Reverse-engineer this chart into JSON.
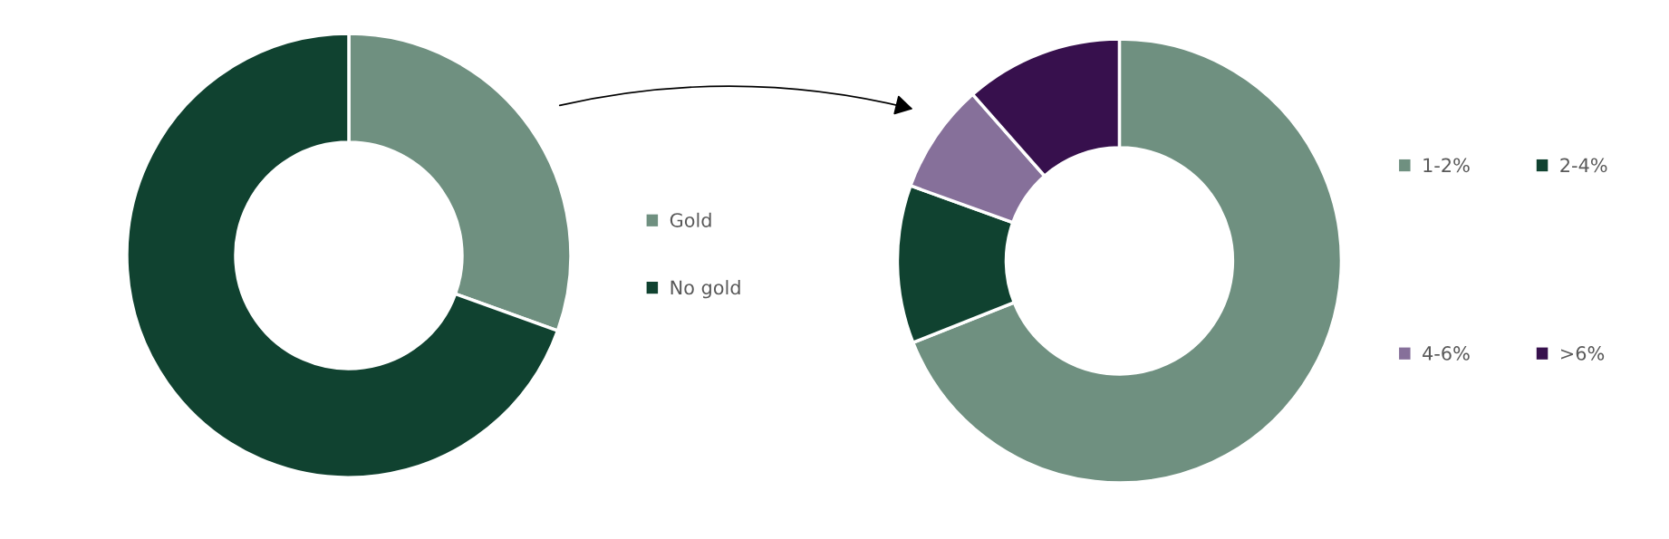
{
  "chart_data": [
    {
      "type": "donut",
      "categories": [
        "Gold",
        "No gold"
      ],
      "values": [
        30.5,
        69.5
      ],
      "colors": [
        "#6f9080",
        "#104230"
      ],
      "legend": "right"
    },
    {
      "type": "donut",
      "categories": [
        "1-2%",
        "2-4%",
        "4-6%",
        ">6%"
      ],
      "values": [
        69,
        11.5,
        8,
        11.5
      ],
      "colors": [
        "#6f9080",
        "#104230",
        "#86709a",
        "#37104d"
      ],
      "legend": "right"
    }
  ]
}
